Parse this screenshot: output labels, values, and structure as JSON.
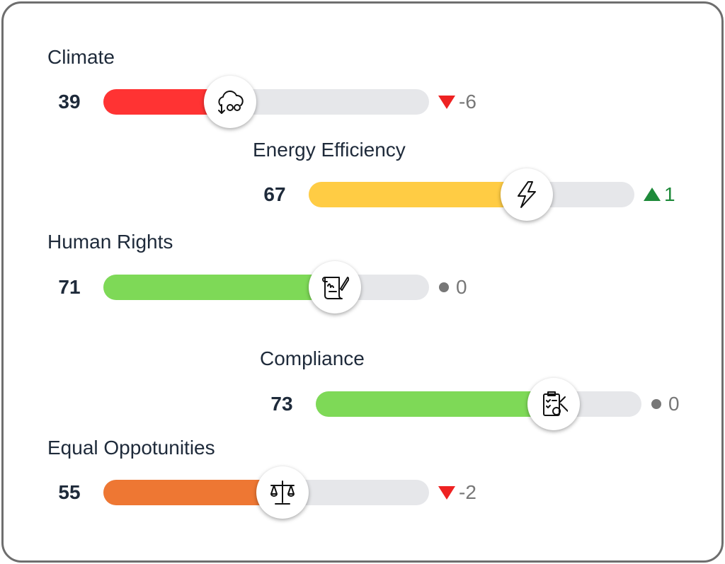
{
  "items": [
    {
      "label": "Climate",
      "score": 39,
      "change": -6,
      "color": "#ff3333"
    },
    {
      "label": "Energy Efficiency",
      "score": 67,
      "change": 1,
      "color": "#ffcc44"
    },
    {
      "label": "Human Rights",
      "score": 71,
      "change": 0,
      "color": "#7ed957"
    },
    {
      "label": "Compliance",
      "score": 73,
      "change": 0,
      "color": "#7ed957"
    },
    {
      "label": "Equal Oppotunities",
      "score": 55,
      "change": -2,
      "color": "#ee7733"
    }
  ]
}
